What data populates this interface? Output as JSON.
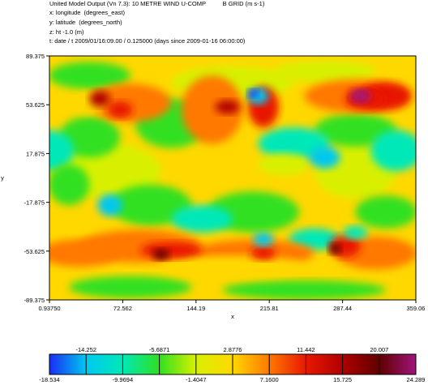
{
  "header": {
    "line1": "United Model Output (Vn 7.3): 10 METRE WIND U-COMP          B GRID (m s-1)",
    "line2": "x: longitude  (degrees_east)",
    "line3": "y: latitude  (degrees_north)",
    "line4": "z: ht -1.0 (m)",
    "line5": "t: date / t 2009/01/16:09.00 / 0.125000 (days since 2009-01-16 06:00:00)"
  },
  "chart_data": {
    "type": "heatmap",
    "xlabel": "x",
    "ylabel": "y",
    "xlim": [
      0.9375,
      359.06
    ],
    "ylim": [
      -89.375,
      89.375
    ],
    "x_ticks": [
      "0.93750",
      "72.562",
      "144.19",
      "215.81",
      "287.44",
      "359.06"
    ],
    "y_ticks": [
      "89.375",
      "53.625",
      "17.875",
      "-17.875",
      "-53.625",
      "-89.375"
    ],
    "x_tick_values": [
      0.9375,
      72.562,
      144.19,
      215.81,
      287.44,
      359.06
    ],
    "y_tick_values": [
      89.375,
      53.625,
      17.875,
      -17.875,
      -53.625,
      -89.375
    ],
    "colorbar": {
      "bounds": [
        -18.534,
        -14.252,
        -9.9694,
        -5.6871,
        -1.4047,
        2.8776,
        7.16,
        11.442,
        15.725,
        20.007,
        24.289
      ],
      "labels_top": [
        "-14.252",
        "-5.6871",
        "2.8776",
        "11.442",
        "20.007"
      ],
      "labels_bottom": [
        "-18.534",
        "-9.9694",
        "-1.4047",
        "7.1600",
        "15.725",
        "24.289"
      ],
      "colors": [
        "#1a2cf5",
        "#00c8f0",
        "#00e8b8",
        "#30e020",
        "#d8f000",
        "#ffd800",
        "#ff7800",
        "#e81800",
        "#b00000",
        "#600000",
        "#a0147a"
      ]
    }
  }
}
